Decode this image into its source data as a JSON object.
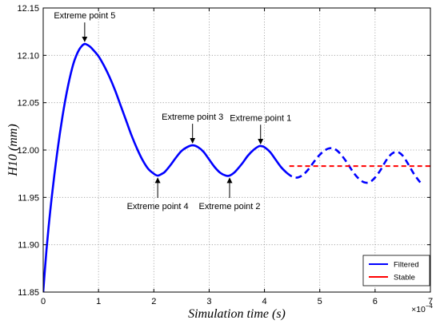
{
  "chart_data": {
    "type": "line",
    "xlabel": "Simulation time (s)",
    "ylabel": "H10 (mm)",
    "x_offset_text": {
      "base": "×10",
      "exponent": "−4"
    },
    "xlim": [
      0,
      7
    ],
    "ylim": [
      11.85,
      12.15
    ],
    "x_ticks": [
      "0",
      "1",
      "2",
      "3",
      "4",
      "5",
      "6",
      "7"
    ],
    "y_ticks": [
      "11.85",
      "11.90",
      "11.95",
      "12.00",
      "12.05",
      "12.10",
      "12.15"
    ],
    "grid": true,
    "legend": {
      "position": "lower right"
    },
    "series": [
      {
        "name": "Filtered",
        "color": "#0000ff",
        "style": "solid",
        "x": [
          0,
          0.03,
          0.06,
          0.1,
          0.15,
          0.2,
          0.25,
          0.3,
          0.35,
          0.4,
          0.45,
          0.5,
          0.55,
          0.6,
          0.65,
          0.7,
          0.75,
          0.8,
          0.85,
          0.9,
          1.0,
          1.1,
          1.2,
          1.3,
          1.4,
          1.5,
          1.6,
          1.7,
          1.8,
          1.9,
          2.0,
          2.07,
          2.15,
          2.2,
          2.3,
          2.4,
          2.5,
          2.6,
          2.7,
          2.8,
          2.9,
          3.0,
          3.1,
          3.2,
          3.3,
          3.37,
          3.45,
          3.5,
          3.6,
          3.7,
          3.8,
          3.9,
          3.95,
          4.0,
          4.1,
          4.2,
          4.3,
          4.4
        ],
        "y": [
          11.85,
          11.873,
          11.895,
          11.92,
          11.948,
          11.973,
          11.996,
          12.017,
          12.036,
          12.053,
          12.068,
          12.081,
          12.092,
          12.1,
          12.106,
          12.11,
          12.112,
          12.111,
          12.109,
          12.106,
          12.099,
          12.089,
          12.077,
          12.063,
          12.047,
          12.031,
          12.015,
          12.001,
          11.989,
          11.98,
          11.975,
          11.973,
          11.975,
          11.977,
          11.984,
          11.992,
          11.999,
          12.003,
          12.005,
          12.003,
          11.998,
          11.99,
          11.982,
          11.976,
          11.973,
          11.973,
          11.976,
          11.979,
          11.986,
          11.994,
          12.0,
          12.004,
          12.004,
          12.003,
          11.998,
          11.99,
          11.982,
          11.976
        ]
      },
      {
        "color": "#0000ff",
        "style": "dashed",
        "x": [
          4.4,
          4.5,
          4.6,
          4.7,
          4.8,
          4.9,
          5.0,
          5.1,
          5.2,
          5.3,
          5.4,
          5.5,
          5.6,
          5.7,
          5.8,
          5.9,
          6.0,
          6.1,
          6.2,
          6.3,
          6.4,
          6.5,
          6.6,
          6.7,
          6.8,
          6.85
        ],
        "y": [
          11.976,
          11.972,
          11.971,
          11.974,
          11.98,
          11.988,
          11.995,
          12.0,
          12.002,
          12.0,
          11.994,
          11.986,
          11.977,
          11.97,
          11.966,
          11.966,
          11.971,
          11.979,
          11.989,
          11.996,
          11.998,
          11.994,
          11.985,
          11.975,
          11.967,
          11.964
        ]
      },
      {
        "name": "Stable",
        "color": "#ff0000",
        "style": "dashed",
        "x": [
          4.45,
          7.0
        ],
        "y": [
          11.983,
          11.983
        ]
      }
    ],
    "annotations": [
      {
        "text": "Extreme point 5",
        "x": 0.75,
        "y": 12.112,
        "placement": "above"
      },
      {
        "text": "Extreme point 3",
        "x": 2.7,
        "y": 12.005,
        "placement": "above"
      },
      {
        "text": "Extreme point 1",
        "x": 3.93,
        "y": 12.004,
        "placement": "above"
      },
      {
        "text": "Extreme point 4",
        "x": 2.07,
        "y": 11.973,
        "placement": "below"
      },
      {
        "text": "Extreme point 2",
        "x": 3.37,
        "y": 11.973,
        "placement": "below"
      }
    ]
  }
}
